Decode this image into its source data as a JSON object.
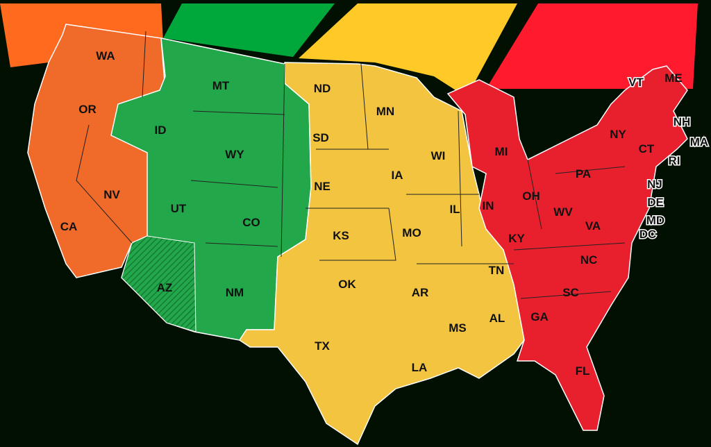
{
  "title": "",
  "zones": [
    {
      "id": "pacific",
      "color": "#f06a2a",
      "band_color": "#ff6a1f"
    },
    {
      "id": "mountain",
      "color": "#22a84a",
      "band_color": "#00a83c"
    },
    {
      "id": "central",
      "color": "#f2c440",
      "band_color": "#ffc928"
    },
    {
      "id": "eastern",
      "color": "#e8202e",
      "band_color": "#ff1a2e"
    }
  ],
  "states": {
    "pacific": [
      "WA",
      "OR",
      "CA",
      "NV"
    ],
    "mountain": [
      "MT",
      "ID",
      "WY",
      "UT",
      "CO",
      "AZ",
      "NM"
    ],
    "central": [
      "ND",
      "SD",
      "NE",
      "KS",
      "OK",
      "TX",
      "MN",
      "IA",
      "MO",
      "AR",
      "LA",
      "WI",
      "IL",
      "TN",
      "MS",
      "AL"
    ],
    "eastern": [
      "MI",
      "IN",
      "OH",
      "KY",
      "WV",
      "VA",
      "PA",
      "NY",
      "NC",
      "SC",
      "GA",
      "FL",
      "VT",
      "ME",
      "NH",
      "MA",
      "CT",
      "RI",
      "NJ",
      "DE",
      "MD",
      "DC"
    ]
  },
  "notes": {
    "AZ": "hatched (no daylight saving)"
  }
}
